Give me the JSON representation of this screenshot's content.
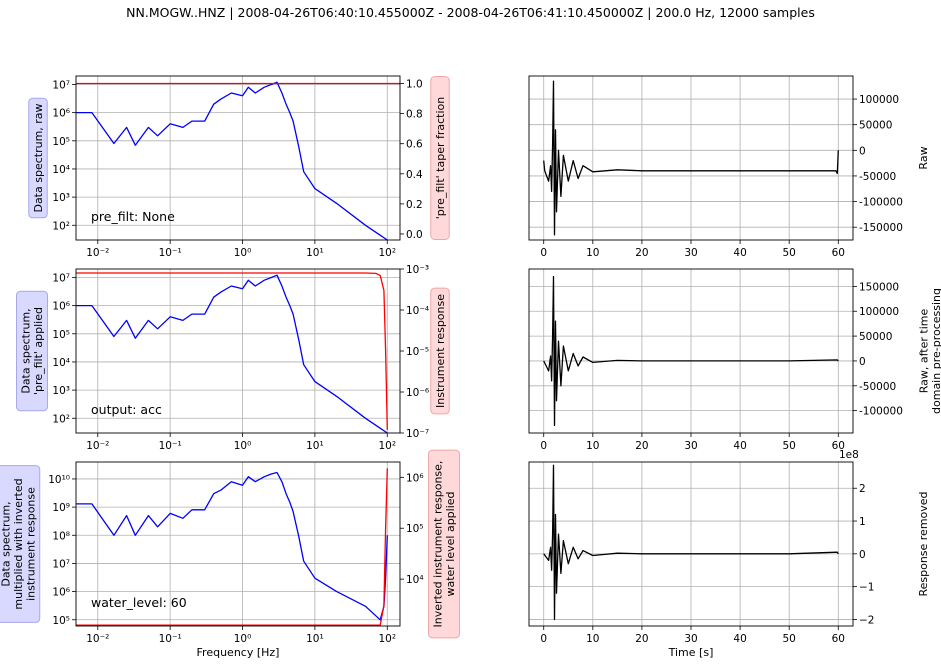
{
  "figure_title": "NN.MOGW..HNZ | 2008-04-26T06:40:10.455000Z - 2008-04-26T06:41:10.450000Z | 200.0 Hz, 12000 samples",
  "colors": {
    "spectrum": "#0000ff",
    "response": "#ff0000",
    "trace": "#000000",
    "blue_box": "#d9d9ff",
    "red_box": "#ffd9d9",
    "grid": "#b0b0b0"
  },
  "chart_data": [
    {
      "id": "spec1",
      "type": "line",
      "ylabel": "Data spectrum, raw",
      "ylabel_style": "blue_box",
      "y2label": "'pre_filt' taper fraction",
      "y2label_style": "red_box",
      "annotation": "pre_filt: None",
      "xscale": "log",
      "xlim": [
        0.005,
        150
      ],
      "xticks": [
        "10⁻²",
        "10⁻¹",
        "10⁰",
        "10¹",
        "10²"
      ],
      "yscale": "log",
      "ylim": [
        30,
        20000000
      ],
      "yticks": [
        "10²",
        "10³",
        "10⁴",
        "10⁵",
        "10⁶",
        "10⁷"
      ],
      "y2lim": [
        -0.04,
        1.05
      ],
      "y2ticks": [
        "0.0",
        "0.2",
        "0.4",
        "0.6",
        "0.8",
        "1.0"
      ],
      "grid": true,
      "series": [
        {
          "axis": "left",
          "color": "spectrum",
          "x": [
            0.005,
            0.0083,
            0.0167,
            0.025,
            0.033,
            0.05,
            0.067,
            0.1,
            0.15,
            0.2,
            0.3,
            0.4,
            0.5,
            0.7,
            1.0,
            1.2,
            1.5,
            2.0,
            2.5,
            3.0,
            3.5,
            4.0,
            4.5,
            5.0,
            6.0,
            7.0,
            10.0,
            20.0,
            50.0,
            100.0
          ],
          "y": [
            1000000,
            1000000,
            80000,
            300000,
            70000,
            300000,
            150000,
            400000,
            300000,
            500000,
            500000,
            2000000,
            3000000,
            5000000,
            4000000,
            8000000,
            5000000,
            8000000,
            10000000,
            12000000,
            5000000,
            2000000,
            1000000,
            500000,
            60000,
            8000,
            2000,
            600,
            100,
            30
          ]
        },
        {
          "axis": "right",
          "color": "response",
          "x": [
            0.005,
            150
          ],
          "y": [
            1.0,
            1.0
          ]
        }
      ]
    },
    {
      "id": "spec2",
      "type": "line",
      "ylabel": "Data spectrum,\n'pre_filt' applied",
      "ylabel_style": "blue_box",
      "y2label": "Instrument response",
      "y2label_style": "red_box",
      "annotation": "output: acc",
      "xscale": "log",
      "xlim": [
        0.005,
        150
      ],
      "xticks": [
        "10⁻²",
        "10⁻¹",
        "10⁰",
        "10¹",
        "10²"
      ],
      "yscale": "log",
      "ylim": [
        30,
        20000000
      ],
      "yticks": [
        "10²",
        "10³",
        "10⁴",
        "10⁵",
        "10⁶",
        "10⁷"
      ],
      "y2scale": "log",
      "y2lim": [
        1e-07,
        0.001
      ],
      "y2ticks": [
        "10⁻⁷",
        "10⁻⁶",
        "10⁻⁵",
        "10⁻⁴",
        "10⁻³"
      ],
      "grid": true,
      "series": [
        {
          "axis": "left",
          "color": "spectrum",
          "x": [
            0.005,
            0.0083,
            0.0167,
            0.025,
            0.033,
            0.05,
            0.067,
            0.1,
            0.15,
            0.2,
            0.3,
            0.4,
            0.5,
            0.7,
            1.0,
            1.2,
            1.5,
            2.0,
            2.5,
            3.0,
            3.5,
            4.0,
            4.5,
            5.0,
            6.0,
            7.0,
            10.0,
            20.0,
            50.0,
            100.0
          ],
          "y": [
            1000000,
            1000000,
            80000,
            300000,
            70000,
            300000,
            150000,
            400000,
            300000,
            500000,
            500000,
            2000000,
            3000000,
            5000000,
            4000000,
            8000000,
            5000000,
            8000000,
            10000000,
            12000000,
            5000000,
            2000000,
            1000000,
            500000,
            60000,
            8000,
            2000,
            600,
            100,
            30
          ]
        },
        {
          "axis": "right",
          "color": "response",
          "x": [
            0.005,
            50,
            70,
            80,
            90,
            95,
            100
          ],
          "y": [
            0.0008,
            0.0008,
            0.00078,
            0.0007,
            0.0003,
            1e-05,
            1.2e-07
          ]
        }
      ]
    },
    {
      "id": "spec3",
      "type": "line",
      "ylabel": "Data spectrum,\nmultiplied with inverted\ninstrument response",
      "ylabel_style": "blue_box",
      "y2label": "Inverted instrument response,\nwater level applied",
      "y2label_style": "red_box",
      "annotation": "water_level: 60",
      "xlabel": "Frequency [Hz]",
      "xscale": "log",
      "xlim": [
        0.005,
        150
      ],
      "xticks": [
        "10⁻²",
        "10⁻¹",
        "10⁰",
        "10¹",
        "10²"
      ],
      "yscale": "log",
      "ylim": [
        60000,
        40000000000
      ],
      "yticks": [
        "10⁵",
        "10⁶",
        "10⁷",
        "10⁸",
        "10⁹",
        "10¹⁰"
      ],
      "y2scale": "log",
      "y2lim": [
        1200,
        2000000
      ],
      "y2ticks": [
        "10⁴",
        "10⁵",
        "10⁶"
      ],
      "grid": true,
      "series": [
        {
          "axis": "left",
          "color": "spectrum",
          "x": [
            0.005,
            0.0083,
            0.0167,
            0.025,
            0.033,
            0.05,
            0.067,
            0.1,
            0.15,
            0.2,
            0.3,
            0.4,
            0.5,
            0.7,
            1.0,
            1.2,
            1.5,
            2.0,
            2.5,
            3.0,
            3.5,
            4.0,
            4.5,
            5.0,
            6.0,
            7.0,
            10.0,
            20.0,
            50.0,
            80.0,
            90.0,
            95.0,
            100.0
          ],
          "y": [
            1300000000,
            1300000000,
            100000000,
            500000000,
            100000000,
            500000000,
            200000000,
            600000000,
            400000000,
            800000000,
            800000000,
            3000000000,
            4000000000,
            8000000000,
            6000000000,
            12000000000,
            8000000000,
            12000000000,
            15000000000,
            17000000000,
            8000000000,
            3000000000,
            1500000000,
            700000000,
            90000000,
            12000000,
            3000000,
            1000000,
            300000,
            100000,
            300000,
            3000000,
            100000000
          ]
        },
        {
          "axis": "right",
          "color": "response",
          "x": [
            0.005,
            80,
            90,
            95,
            100
          ],
          "y": [
            1250,
            1250,
            3000,
            100000,
            1500000
          ]
        }
      ]
    },
    {
      "id": "trace1",
      "type": "line",
      "ylabel": "Raw",
      "xlim": [
        -3,
        63
      ],
      "xticks": [
        0,
        10,
        20,
        30,
        40,
        50,
        60
      ],
      "ylim": [
        -175000,
        145000
      ],
      "yticks": [
        "100000",
        "50000",
        "0",
        "-50000",
        "-100000",
        "-150000"
      ],
      "ytick_values": [
        100000,
        50000,
        0,
        -50000,
        -100000,
        -150000
      ],
      "grid": true,
      "series": [
        {
          "color": "trace",
          "x": [
            0,
            0.2,
            1.0,
            1.4,
            1.6,
            1.8,
            2.0,
            2.2,
            2.4,
            2.6,
            3.0,
            3.5,
            4.0,
            5.0,
            6.0,
            7.0,
            8.0,
            10.0,
            15.0,
            20.0,
            30.0,
            40.0,
            50.0,
            59.5,
            59.8,
            60.0
          ],
          "y": [
            -20000,
            -40000,
            -60000,
            -30000,
            -80000,
            10000,
            135000,
            -165000,
            40000,
            -120000,
            0,
            -90000,
            -10000,
            -60000,
            -20000,
            -55000,
            -30000,
            -42000,
            -38000,
            -40000,
            -40000,
            -40000,
            -40000,
            -40000,
            -45000,
            0
          ]
        }
      ]
    },
    {
      "id": "trace2",
      "type": "line",
      "ylabel": "Raw, after time\ndomain pre-processing",
      "xlim": [
        -3,
        63
      ],
      "xticks": [
        0,
        10,
        20,
        30,
        40,
        50,
        60
      ],
      "ylim": [
        -145000,
        185000
      ],
      "yticks": [
        "150000",
        "100000",
        "50000",
        "0",
        "-50000",
        "-100000"
      ],
      "ytick_values": [
        150000,
        100000,
        50000,
        0,
        -50000,
        -100000
      ],
      "grid": true,
      "series": [
        {
          "color": "trace",
          "x": [
            0,
            1.0,
            1.4,
            1.6,
            1.8,
            2.0,
            2.2,
            2.4,
            2.6,
            3.0,
            3.5,
            4.0,
            5.0,
            6.0,
            7.0,
            8.0,
            10.0,
            15.0,
            20.0,
            30.0,
            40.0,
            50.0,
            59.8,
            60.0
          ],
          "y": [
            0,
            -20000,
            10000,
            -40000,
            50000,
            170000,
            -130000,
            80000,
            -80000,
            40000,
            -50000,
            30000,
            -20000,
            15000,
            -10000,
            8000,
            -3000,
            1000,
            0,
            0,
            0,
            0,
            2000,
            0
          ]
        }
      ]
    },
    {
      "id": "trace3",
      "type": "line",
      "ylabel": "Response removed",
      "xlabel": "Time [s]",
      "offset_text": "1e8",
      "xlim": [
        -3,
        63
      ],
      "xticks": [
        0,
        10,
        20,
        30,
        40,
        50,
        60
      ],
      "ylim": [
        -2.2,
        2.8
      ],
      "yticks": [
        "2",
        "1",
        "0",
        "−1",
        "−2"
      ],
      "ytick_values": [
        2,
        1,
        0,
        -1,
        -2
      ],
      "grid": true,
      "series": [
        {
          "color": "trace",
          "x": [
            0,
            1.0,
            1.4,
            1.6,
            1.8,
            2.0,
            2.2,
            2.4,
            2.6,
            3.0,
            3.5,
            4.0,
            5.0,
            6.0,
            7.0,
            8.0,
            10.0,
            15.0,
            20.0,
            30.0,
            40.0,
            50.0,
            59.8,
            60.0
          ],
          "y": [
            0,
            -0.2,
            0.2,
            -0.5,
            0.6,
            2.7,
            -2.0,
            1.2,
            -1.2,
            0.6,
            -0.6,
            0.4,
            -0.3,
            0.2,
            -0.15,
            0.1,
            -0.05,
            0.02,
            0,
            0,
            0,
            0,
            0.05,
            0
          ]
        }
      ]
    }
  ]
}
